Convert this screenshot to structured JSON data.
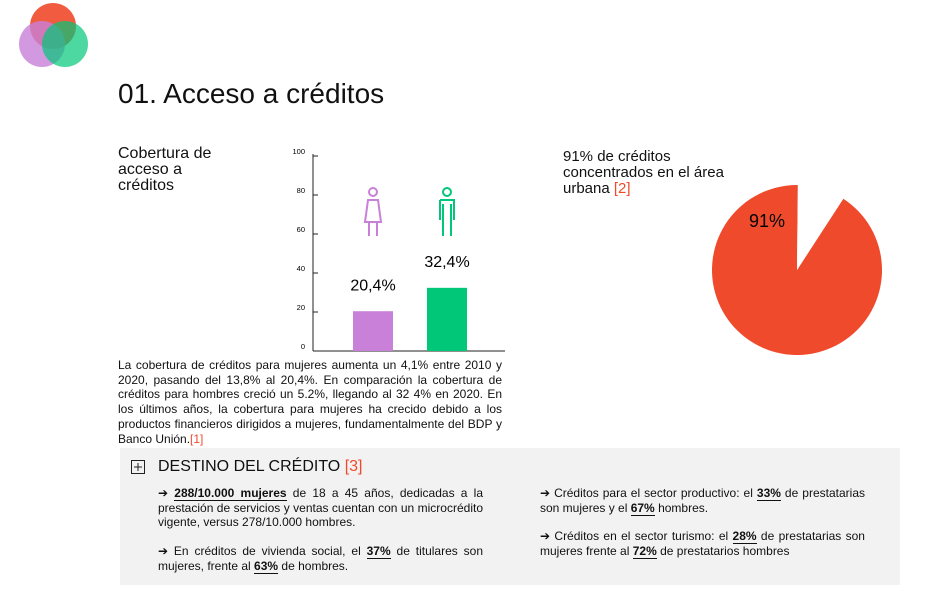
{
  "header": {
    "title": "01. Acceso a créditos"
  },
  "chart_data": [
    {
      "type": "bar",
      "title": "Cobertura de acceso a créditos",
      "categories": [
        null,
        null
      ],
      "values": [
        20.4,
        32.4
      ],
      "value_labels": [
        "20,4%",
        "32,4%"
      ],
      "colors": [
        "#c880d8",
        "#00c878"
      ],
      "ylim": [
        0,
        100
      ],
      "yticks": [
        0,
        20,
        40,
        60,
        80,
        100
      ]
    },
    {
      "type": "pie",
      "title": "91% de créditos concentrados en el área urbana",
      "title_ref": "[2]",
      "values": [
        91,
        9
      ],
      "value_labels": [
        "91%",
        null
      ],
      "colors": [
        "#f04a2c",
        "#ffffff"
      ]
    }
  ],
  "paragraph": {
    "text": "La cobertura de créditos para mujeres aumenta un 4,1% entre 2010 y 2020, pasando del 13,8% al 20,4%. En comparación la cobertura de créditos para hombres creció un 5.2%, llegando al 32 4% en 2020. En los últimos años, la cobertura para mujeres ha crecido debido a los productos financieros dirigidos a mujeres, fundamentalmente del BDP y Banco Unión.",
    "ref": "[1]"
  },
  "destino": {
    "title": "DESTINO DEL CRÉDITO",
    "ref": "[3]",
    "items": [
      [
        {
          "t": "➔ "
        },
        {
          "t": "288/10.000 mujeres",
          "em": true
        },
        {
          "t": " de 18 a 45 años, dedicadas a la prestación de servicios y ventas cuentan con un microcrédito vigente, versus 278/10.000 hombres."
        }
      ],
      [
        {
          "t": "➔ En créditos de vivienda social, el "
        },
        {
          "t": "37%",
          "em": true
        },
        {
          "t": " de titulares son mujeres, frente al "
        },
        {
          "t": "63%",
          "em": true
        },
        {
          "t": " de hombres."
        }
      ],
      [
        {
          "t": "➔ Créditos para el sector productivo: el "
        },
        {
          "t": "33%",
          "em": true
        },
        {
          "t": " de prestatarias son mujeres y el "
        },
        {
          "t": "67%",
          "em": true
        },
        {
          "t": " hombres."
        }
      ],
      [
        {
          "t": "➔ Créditos en el sector turismo: el "
        },
        {
          "t": "28%",
          "em": true
        },
        {
          "t": " de prestatarias son mujeres frente al "
        },
        {
          "t": "72%",
          "em": true
        },
        {
          "t": " de prestatarios hombres"
        }
      ]
    ]
  }
}
